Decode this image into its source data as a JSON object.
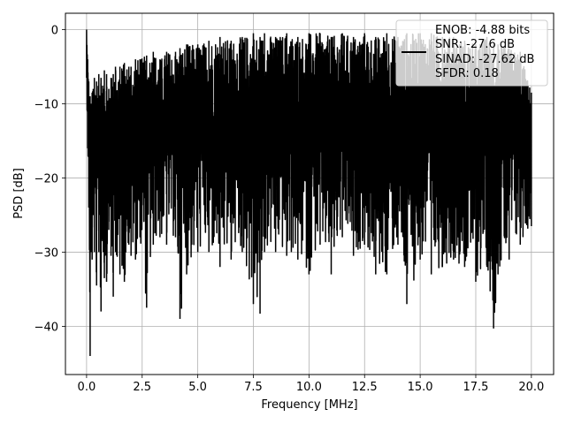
{
  "chart_data": {
    "type": "line",
    "title": "",
    "xlabel": "Frequency [MHz]",
    "ylabel": "PSD [dB]",
    "xlim": [
      -0.95,
      21.0
    ],
    "ylim": [
      -46.5,
      2.2
    ],
    "grid": true,
    "legend_position": "upper-right",
    "line_color": "#000000",
    "x_ticks": [
      0.0,
      2.5,
      5.0,
      7.5,
      10.0,
      12.5,
      15.0,
      17.5,
      20.0
    ],
    "x_tick_labels": [
      "0.0",
      "2.5",
      "5.0",
      "7.5",
      "10.0",
      "12.5",
      "15.0",
      "17.5",
      "20.0"
    ],
    "y_ticks": [
      0,
      -10,
      -20,
      -30,
      -40
    ],
    "y_tick_labels": [
      "0",
      "−10",
      "−20",
      "−30",
      "−40"
    ],
    "legend": {
      "series_label": "",
      "lines": [
        "ENOB: -4.88 bits",
        "SNR: -27.6 dB",
        "SINAD: -27.62 dB",
        "SFDR: 0.18"
      ]
    },
    "series": [
      {
        "name": "",
        "x_start": 0.0,
        "x_end": 20.0,
        "values_note_free": true,
        "x": [
          0.0,
          0.05,
          0.1,
          0.16,
          0.2,
          0.25,
          0.3,
          0.35,
          0.45,
          0.55,
          0.65,
          0.75,
          0.8,
          0.9,
          1.0,
          1.1,
          1.2,
          1.3,
          1.5,
          1.7,
          1.9,
          2.0,
          2.2,
          2.4,
          2.7,
          3.0,
          3.3,
          3.6,
          4.0,
          4.2,
          4.5,
          5.0,
          5.5,
          6.0,
          6.5,
          7.0,
          7.5,
          7.8,
          8.0,
          8.5,
          9.0,
          9.5,
          10.0,
          10.5,
          11.0,
          11.5,
          12.0,
          12.5,
          13.0,
          13.5,
          14.0,
          14.4,
          15.0,
          15.5,
          16.0,
          16.5,
          17.0,
          17.5,
          18.0,
          18.3,
          18.5,
          19.0,
          19.5,
          20.0
        ],
        "lower": [
          -6.5,
          -16.0,
          -24.0,
          -44.0,
          -30.0,
          -31.0,
          -25.0,
          -30.0,
          -34.5,
          -30.0,
          -38.0,
          -30.0,
          -33.5,
          -34.0,
          -27.0,
          -30.5,
          -36.0,
          -30.0,
          -33.0,
          -34.0,
          -29.0,
          -30.5,
          -31.0,
          -28.0,
          -37.5,
          -29.0,
          -28.0,
          -29.0,
          -28.0,
          -39.0,
          -33.0,
          -30.0,
          -30.0,
          -32.0,
          -31.0,
          -30.0,
          -37.0,
          -38.3,
          -30.0,
          -30.0,
          -30.5,
          -31.0,
          -33.0,
          -29.0,
          -33.0,
          -28.0,
          -30.5,
          -29.0,
          -33.0,
          -33.0,
          -29.0,
          -37.0,
          -31.0,
          -33.0,
          -32.0,
          -31.0,
          -32.0,
          -34.0,
          -32.0,
          -40.3,
          -33.0,
          -31.0,
          -29.0,
          -26.5
        ],
        "upper": [
          0.0,
          -4.0,
          -7.0,
          -9.0,
          -10.0,
          -8.5,
          -8.0,
          -6.5,
          -7.0,
          -6.0,
          -6.5,
          -8.0,
          -5.5,
          -6.0,
          -8.0,
          -6.5,
          -6.0,
          -5.0,
          -5.0,
          -4.5,
          -5.0,
          -5.0,
          -4.0,
          -4.0,
          -3.5,
          -3.0,
          -4.0,
          -3.0,
          -3.0,
          -2.5,
          -2.0,
          -2.0,
          -1.5,
          -1.0,
          -1.5,
          -1.0,
          -0.5,
          -1.0,
          -0.5,
          -1.0,
          -0.5,
          -1.0,
          -0.5,
          -0.5,
          -1.0,
          -0.5,
          -1.0,
          -0.5,
          -1.0,
          -0.5,
          -1.0,
          -0.5,
          -0.5,
          -0.5,
          -1.0,
          -1.0,
          -1.5,
          -2.0,
          -1.0,
          -2.0,
          -2.0,
          -2.5,
          -3.0,
          -8.5
        ]
      }
    ]
  }
}
